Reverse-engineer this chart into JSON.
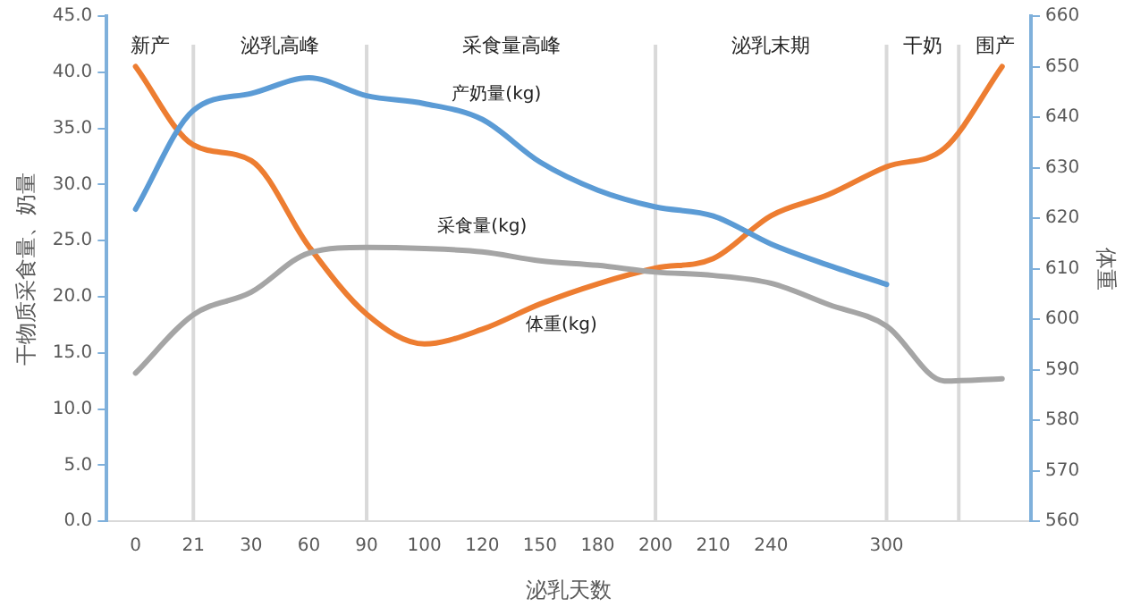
{
  "chart_data": {
    "type": "line",
    "xlabel": "泌乳天数",
    "ylabel": "干物质采食量、奶量",
    "y2label": "体重",
    "categories": [
      "0",
      "21",
      "30",
      "60",
      "90",
      "100",
      "120",
      "150",
      "180",
      "200",
      "210",
      "240",
      null,
      "300",
      null,
      null
    ],
    "series": [
      {
        "name": "产奶量(kg)",
        "color": "#5b9bd5",
        "values": [
          27.8,
          36.6,
          38.1,
          39.5,
          37.9,
          37.2,
          35.8,
          32.0,
          29.5,
          28.0,
          27.2,
          24.7,
          22.8,
          21.1,
          null,
          null
        ]
      },
      {
        "name": "采食量(kg)",
        "color": "#a5a5a5",
        "values": [
          13.2,
          18.4,
          20.4,
          23.9,
          24.4,
          24.3,
          24.0,
          23.2,
          22.8,
          22.2,
          21.9,
          21.2,
          19.3,
          17.4,
          12.5,
          12.7
        ]
      },
      {
        "name": "体重(kg)",
        "color": "#ed7d31",
        "axis": "y2",
        "values": [
          650,
          634.5,
          631.4,
          614.4,
          601,
          595.1,
          598,
          603,
          607,
          610.1,
          612,
          620.5,
          624.7,
          630.2,
          633.8,
          650
        ]
      }
    ],
    "ylim": [
      0,
      45
    ],
    "yticks": [
      {
        "value": 0,
        "label": "0.0"
      },
      {
        "value": 5,
        "label": "5.0"
      },
      {
        "value": 10,
        "label": "10.0"
      },
      {
        "value": 15,
        "label": "15.0"
      },
      {
        "value": 20,
        "label": "20.0"
      },
      {
        "value": 25,
        "label": "25.0"
      },
      {
        "value": 30,
        "label": "30.0"
      },
      {
        "value": 35,
        "label": "35.0"
      },
      {
        "value": 40,
        "label": "40.0"
      },
      {
        "value": 45,
        "label": "45.0"
      }
    ],
    "y2lim": [
      560,
      660
    ],
    "y2ticks": [
      560,
      570,
      580,
      590,
      600,
      610,
      620,
      630,
      640,
      650,
      660
    ],
    "ref_lines": [
      {
        "axis": "x",
        "value": "21",
        "color": "#d9d9d9"
      },
      {
        "axis": "x",
        "value": "90",
        "color": "#d9d9d9"
      },
      {
        "axis": "x",
        "value": "200",
        "color": "#d9d9d9"
      },
      {
        "axis": "x",
        "value": "300",
        "color": "#d9d9d9"
      }
    ],
    "annotations": [
      "新产",
      "泌乳高峰",
      "采食量高峰",
      "泌乳末期",
      "干奶",
      "围产"
    ],
    "grid": false,
    "legend": false,
    "marker": "none",
    "line_style": "solid"
  }
}
